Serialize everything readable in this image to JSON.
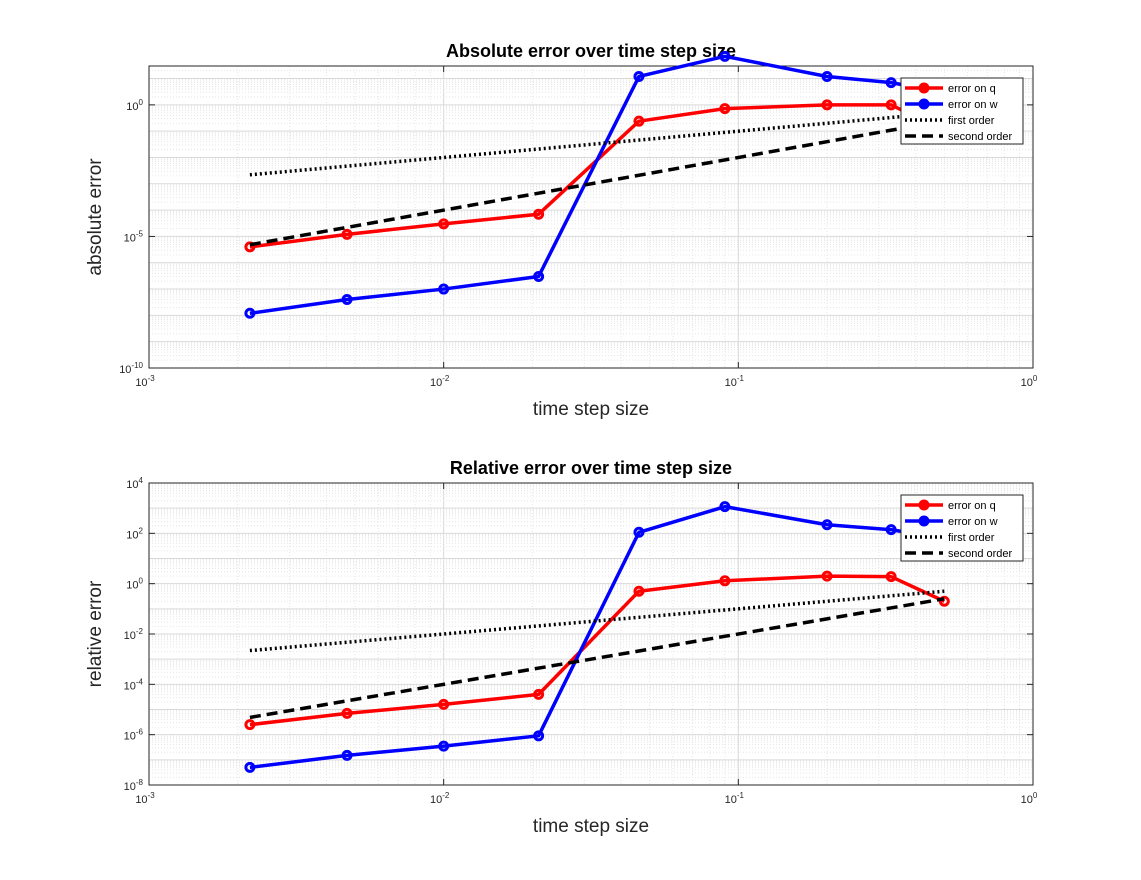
{
  "chart_data": [
    {
      "type": "line",
      "title": "Absolute error over time step size",
      "xlabel": "time step size",
      "ylabel": "absolute error",
      "xscale": "log",
      "yscale": "log",
      "xlim": [
        0.001,
        1
      ],
      "ylim": [
        1e-10,
        30.0
      ],
      "grid": "on (major and minor)",
      "legend_location": "top-right",
      "x_tick_labels": [
        {
          "base": "10",
          "exp": "-3"
        },
        {
          "base": "10",
          "exp": "-2"
        },
        {
          "base": "10",
          "exp": "-1"
        },
        {
          "base": "10",
          "exp": "0"
        }
      ],
      "y_tick_labels": [
        {
          "base": "10",
          "exp": "-10"
        },
        {
          "base": "10",
          "exp": "-5"
        },
        {
          "base": "10",
          "exp": "0"
        }
      ],
      "series": [
        {
          "name": "error on q",
          "color": "#ff0000",
          "style": "solid",
          "markers": true,
          "x": [
            0.0022,
            0.0047,
            0.01,
            0.021,
            0.046,
            0.09,
            0.2,
            0.33,
            0.5
          ],
          "y": [
            4e-06,
            1.2e-05,
            3e-05,
            7e-05,
            0.24,
            0.72,
            1.0,
            1.0,
            0.1
          ]
        },
        {
          "name": "error on w",
          "color": "#0000ff",
          "style": "solid",
          "markers": true,
          "x": [
            0.0022,
            0.0047,
            0.01,
            0.021,
            0.046,
            0.09,
            0.2,
            0.33,
            0.5
          ],
          "y": [
            1.2e-08,
            4e-08,
            1e-07,
            3e-07,
            12,
            70,
            12,
            7,
            3
          ]
        },
        {
          "name": "first order",
          "color": "#000000",
          "style": "dotted",
          "markers": false,
          "x": [
            0.0022,
            0.5
          ],
          "y": [
            0.0022,
            0.5
          ]
        },
        {
          "name": "second order",
          "color": "#000000",
          "style": "dashed",
          "markers": false,
          "x": [
            0.0022,
            0.5
          ],
          "y": [
            4.84e-06,
            0.25
          ]
        }
      ]
    },
    {
      "type": "line",
      "title": "Relative error over time step size",
      "xlabel": "time step size",
      "ylabel": "relative error",
      "xscale": "log",
      "yscale": "log",
      "xlim": [
        0.001,
        1
      ],
      "ylim": [
        1e-08,
        10000.0
      ],
      "grid": "on (major and minor)",
      "legend_location": "top-right",
      "x_tick_labels": [
        {
          "base": "10",
          "exp": "-3"
        },
        {
          "base": "10",
          "exp": "-2"
        },
        {
          "base": "10",
          "exp": "-1"
        },
        {
          "base": "10",
          "exp": "0"
        }
      ],
      "y_tick_labels": [
        {
          "base": "10",
          "exp": "-8"
        },
        {
          "base": "10",
          "exp": "-6"
        },
        {
          "base": "10",
          "exp": "-4"
        },
        {
          "base": "10",
          "exp": "-2"
        },
        {
          "base": "10",
          "exp": "0"
        },
        {
          "base": "10",
          "exp": "2"
        },
        {
          "base": "10",
          "exp": "4"
        }
      ],
      "series": [
        {
          "name": "error on q",
          "color": "#ff0000",
          "style": "solid",
          "markers": true,
          "x": [
            0.0022,
            0.0047,
            0.01,
            0.021,
            0.046,
            0.09,
            0.2,
            0.33,
            0.5
          ],
          "y": [
            2.5e-06,
            7e-06,
            1.6e-05,
            4e-05,
            0.5,
            1.3,
            2.0,
            1.9,
            0.2
          ]
        },
        {
          "name": "error on w",
          "color": "#0000ff",
          "style": "solid",
          "markers": true,
          "x": [
            0.0022,
            0.0047,
            0.01,
            0.021,
            0.046,
            0.09,
            0.2,
            0.33,
            0.5
          ],
          "y": [
            5e-08,
            1.5e-07,
            3.5e-07,
            9e-07,
            110,
            1150,
            220,
            140,
            60
          ]
        },
        {
          "name": "first order",
          "color": "#000000",
          "style": "dotted",
          "markers": false,
          "x": [
            0.0022,
            0.5
          ],
          "y": [
            0.0022,
            0.5
          ]
        },
        {
          "name": "second order",
          "color": "#000000",
          "style": "dashed",
          "markers": false,
          "x": [
            0.0022,
            0.5
          ],
          "y": [
            4.84e-06,
            0.25
          ]
        }
      ]
    }
  ]
}
